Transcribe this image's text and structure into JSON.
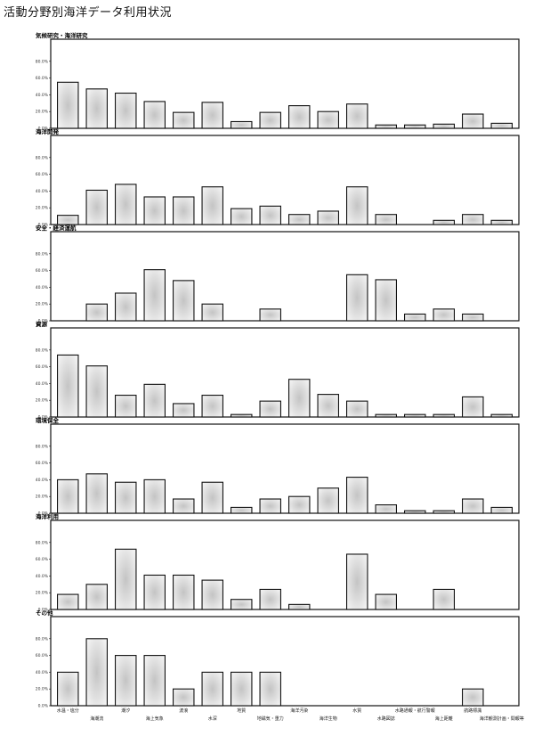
{
  "title": "活動分野別海洋データ利用状況",
  "chart_data": {
    "type": "bar",
    "categories": [
      "水温・塩分",
      "海潮流",
      "潮汐",
      "海上気象",
      "波浪",
      "水深",
      "地質",
      "地磁気・重力",
      "海洋汚染",
      "海洋生物",
      "水質",
      "水路図誌",
      "水路通報・航行警報",
      "海上距離",
      "航路標識",
      "海洋観測計画・間報等"
    ],
    "ylim": [
      0,
      100
    ],
    "yticks": [
      "0.0%",
      "20.0%",
      "40.0%",
      "60.0%",
      "80.0%"
    ],
    "panels": [
      {
        "title": "気候研究・海洋研究",
        "values": [
          55,
          47,
          42,
          32,
          19,
          31,
          8,
          19,
          27,
          20,
          29,
          4,
          4,
          5,
          17,
          6
        ]
      },
      {
        "title": "海洋開発",
        "values": [
          11,
          41,
          48,
          33,
          33,
          45,
          19,
          22,
          12,
          16,
          45,
          12,
          0,
          5,
          12,
          5
        ]
      },
      {
        "title": "安全・経済運航",
        "values": [
          0,
          20,
          33,
          61,
          48,
          20,
          0,
          14,
          0,
          0,
          55,
          49,
          8,
          14,
          8,
          0
        ]
      },
      {
        "title": "資源",
        "values": [
          74,
          61,
          26,
          39,
          16,
          26,
          3,
          19,
          45,
          27,
          19,
          3,
          3,
          3,
          24,
          3
        ]
      },
      {
        "title": "環境保全",
        "values": [
          40,
          47,
          37,
          40,
          17,
          37,
          7,
          17,
          20,
          30,
          43,
          10,
          3,
          3,
          17,
          7
        ]
      },
      {
        "title": "海洋利用",
        "values": [
          18,
          30,
          72,
          41,
          41,
          35,
          12,
          24,
          6,
          0,
          66,
          18,
          0,
          24,
          0,
          0
        ]
      },
      {
        "title": "その他",
        "values": [
          40,
          80,
          60,
          60,
          20,
          40,
          40,
          40,
          0,
          0,
          0,
          0,
          0,
          0,
          20,
          0
        ]
      }
    ]
  }
}
